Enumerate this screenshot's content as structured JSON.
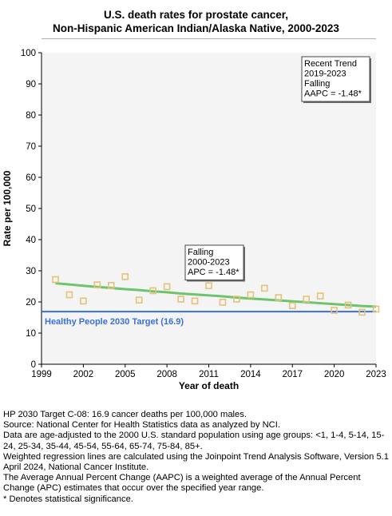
{
  "chart_data": {
    "type": "scatter",
    "title_lines": [
      "U.S. death rates for prostate cancer,",
      "Non-Hispanic American Indian/Alaska Native,  2000-2023"
    ],
    "xlabel": "Year of death",
    "ylabel": "Rate per 100,000",
    "xlim": [
      1999,
      2023
    ],
    "ylim": [
      0,
      100
    ],
    "x_ticks": [
      1999,
      2002,
      2005,
      2008,
      2011,
      2014,
      2017,
      2020,
      2023
    ],
    "y_ticks": [
      0,
      10,
      20,
      30,
      40,
      50,
      60,
      70,
      80,
      90,
      100
    ],
    "grid": false,
    "colors": {
      "observed": "#e3c27a",
      "trend": "#6cc46c",
      "target": "#3a6fd8",
      "plot_bg": "#f4f4f4"
    },
    "observed": {
      "x": [
        2000,
        2001,
        2002,
        2003,
        2004,
        2005,
        2006,
        2007,
        2008,
        2009,
        2010,
        2011,
        2012,
        2013,
        2014,
        2015,
        2016,
        2017,
        2018,
        2019,
        2020,
        2021,
        2022,
        2023
      ],
      "y": [
        27.2,
        22.3,
        20.3,
        25.5,
        25.3,
        28.1,
        20.6,
        23.6,
        24.9,
        20.9,
        20.3,
        25.2,
        19.9,
        20.9,
        22.3,
        24.4,
        21.4,
        18.8,
        20.9,
        21.9,
        17.3,
        19.0,
        16.7,
        17.7
      ]
    },
    "trend": {
      "x": [
        2000,
        2001,
        2002,
        2003,
        2004,
        2005,
        2006,
        2007,
        2008,
        2009,
        2010,
        2011,
        2012,
        2013,
        2014,
        2015,
        2016,
        2017,
        2018,
        2019,
        2020,
        2021,
        2022,
        2023
      ],
      "y": [
        26.0,
        25.6,
        25.2,
        24.8,
        24.5,
        24.1,
        23.8,
        23.4,
        23.1,
        22.7,
        22.4,
        22.1,
        21.8,
        21.4,
        21.1,
        20.8,
        20.5,
        20.2,
        19.9,
        19.6,
        19.3,
        19.0,
        18.7,
        18.5
      ]
    },
    "target": {
      "value": 16.9,
      "label": "Healthy People 2030 Target (16.9)"
    },
    "annotations": [
      {
        "id": "recent",
        "lines": [
          "Recent Trend",
          "2019-2023",
          "Falling",
          "AAPC = -1.48*"
        ]
      },
      {
        "id": "overall",
        "lines": [
          "Falling",
          "2000-2023",
          "APC = -1.48*"
        ]
      }
    ]
  },
  "footnotes": [
    "HP 2030 Target C-08: 16.9 cancer deaths per 100,000 males.",
    "Source: National Center for Health Statistics data as analyzed by NCI.",
    "Data are age-adjusted to the 2000 U.S. standard population using age groups: <1, 1-4, 5-14, 15-24, 25-34, 35-44, 45-54, 55-64, 65-74, 75-84, 85+.",
    "Weighted regression lines are calculated using the Joinpoint Trend Analysis Software, Version 5.1 April 2024, National Cancer Institute.",
    "The Average Annual Percent Change (AAPC) is a weighted average of the Annual Percent Change (APC) estimates that occur over the specified year range.",
    "* Denotes statistical significance."
  ]
}
